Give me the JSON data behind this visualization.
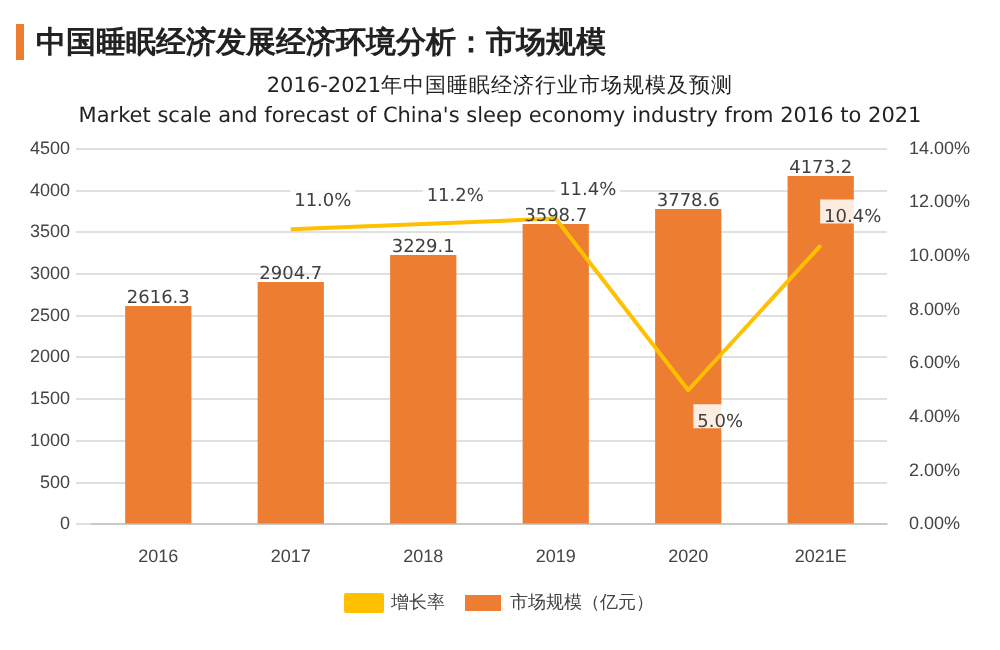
{
  "chart_data": {
    "type": "bar",
    "title": "中国睡眠经济发展经济环境分析：市场规模",
    "subtitle": "2016-2021年中国睡眠经济行业市场规模及预测\nMarket scale and forecast of China's sleep economy industry from 2016 to 2021",
    "categories": [
      "2016",
      "2017",
      "2018",
      "2019",
      "2020",
      "2021E"
    ],
    "series": [
      {
        "name": "市场规模（亿元）",
        "color": "#ed7d31",
        "values": [
          2616.3,
          2904.7,
          3229.1,
          3598.7,
          3778.6,
          4173.2
        ],
        "value_labels": [
          "2616.3",
          "2904.7",
          "3229.1",
          "3598.7",
          "3778.6",
          "4173.2"
        ]
      },
      {
        "name": "增长率",
        "type": "line",
        "axis": "y2",
        "color": "#ffc000",
        "values": [
          null,
          11.0,
          11.2,
          11.4,
          5.0,
          10.4
        ],
        "value_labels": [
          null,
          "11.0%",
          "11.2%",
          "11.4%",
          "5.0%",
          "10.4%"
        ]
      }
    ],
    "ylim": [
      0,
      4500
    ],
    "yticks": [
      0,
      500,
      1000,
      1500,
      2000,
      2500,
      3000,
      3500,
      4000,
      4500
    ],
    "y2lim": [
      0,
      14
    ],
    "y2ticks": [
      {
        "value": 0,
        "label": "0.00%"
      },
      {
        "value": 2,
        "label": "2.00%"
      },
      {
        "value": 4,
        "label": "4.00%"
      },
      {
        "value": 6,
        "label": "6.00%"
      },
      {
        "value": 8,
        "label": "8.00%"
      },
      {
        "value": 10,
        "label": "10.00%"
      },
      {
        "value": 12,
        "label": "12.00%"
      },
      {
        "value": 14,
        "label": "14.00%"
      }
    ],
    "grid": "y",
    "legend": "bottom",
    "marker": "none",
    "line_style": "solid"
  }
}
